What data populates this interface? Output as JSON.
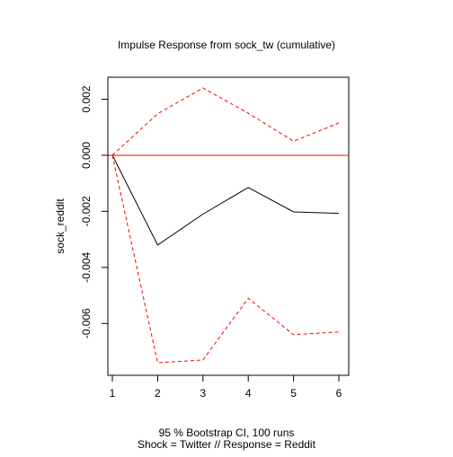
{
  "chart_data": {
    "type": "line",
    "title": "Impulse Response from sock_tw (cumulative)",
    "xlabel": "",
    "ylabel": "sock_reddit",
    "subtitle_lines": [
      "95 % Bootstrap CI,  100 runs",
      "Shock = Twitter // Response = Reddit"
    ],
    "x": [
      1,
      2,
      3,
      4,
      5,
      6
    ],
    "x_ticks": [
      1,
      2,
      3,
      4,
      5,
      6
    ],
    "y_ticks": [
      -0.006,
      -0.004,
      -0.002,
      0.0,
      0.002
    ],
    "y_tick_labels": [
      "-0.006",
      "-0.004",
      "-0.002",
      "0.000",
      "0.002"
    ],
    "xlim": [
      1,
      6
    ],
    "ylim": [
      -0.0074,
      0.0024
    ],
    "zero_line": 0.0,
    "series": [
      {
        "name": "irf",
        "style": "solid",
        "color": "#000000",
        "values": [
          0.0,
          -0.0032,
          -0.0021,
          -0.00115,
          -0.00202,
          -0.00207
        ]
      },
      {
        "name": "upper",
        "style": "dashed",
        "color": "#ff0000",
        "values": [
          0.0,
          0.00148,
          0.0024,
          0.0015,
          0.0005,
          0.00115
        ]
      },
      {
        "name": "lower",
        "style": "dashed",
        "color": "#ff0000",
        "values": [
          0.0,
          -0.0074,
          -0.0073,
          -0.0051,
          -0.0064,
          -0.0063
        ]
      }
    ],
    "colors": {
      "zero_line": "#ff0000",
      "frame": "#000000"
    }
  }
}
